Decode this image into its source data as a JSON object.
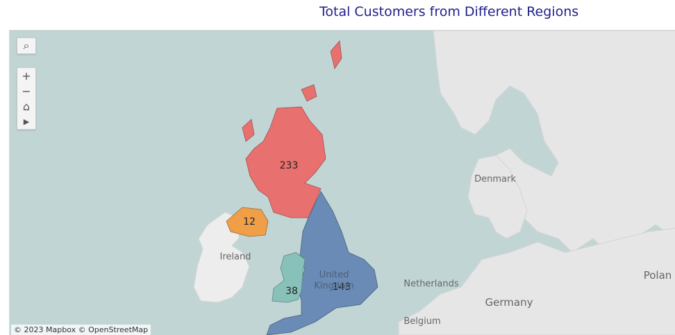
{
  "title": "Total Customers from Different Regions",
  "attribution": "© 2023 Mapbox  © OpenStreetMap",
  "controls": [
    {
      "name": "search",
      "icon": "search-icon",
      "glyph": "⌕"
    },
    {
      "name": "zoom-in",
      "icon": "plus-icon",
      "glyph": "+"
    },
    {
      "name": "zoom-out",
      "icon": "minus-icon",
      "glyph": "−"
    },
    {
      "name": "home",
      "icon": "home-icon",
      "glyph": "⌂"
    },
    {
      "name": "pan",
      "icon": "play-icon",
      "glyph": "▶"
    }
  ],
  "regions": [
    {
      "name": "Scotland",
      "customers": "233",
      "color": "#e8706e"
    },
    {
      "name": "Northern Ireland",
      "customers": "12",
      "color": "#f19e48"
    },
    {
      "name": "Wales",
      "customers": "38",
      "color": "#88c1b9"
    },
    {
      "name": "England",
      "customers": "143",
      "color": "#6a8bb5"
    }
  ],
  "place_labels": {
    "ireland": "Ireland",
    "uk_line1": "United",
    "uk_line2": "Kingdom",
    "denmark": "Denmark",
    "netherlands": "Netherlands",
    "germany": "Germany",
    "belgium": "Belgium",
    "poland": "Polan"
  },
  "colors": {
    "water": "#c2d5d5",
    "land": "#e6e6e6",
    "title": "#1f1f8a"
  }
}
